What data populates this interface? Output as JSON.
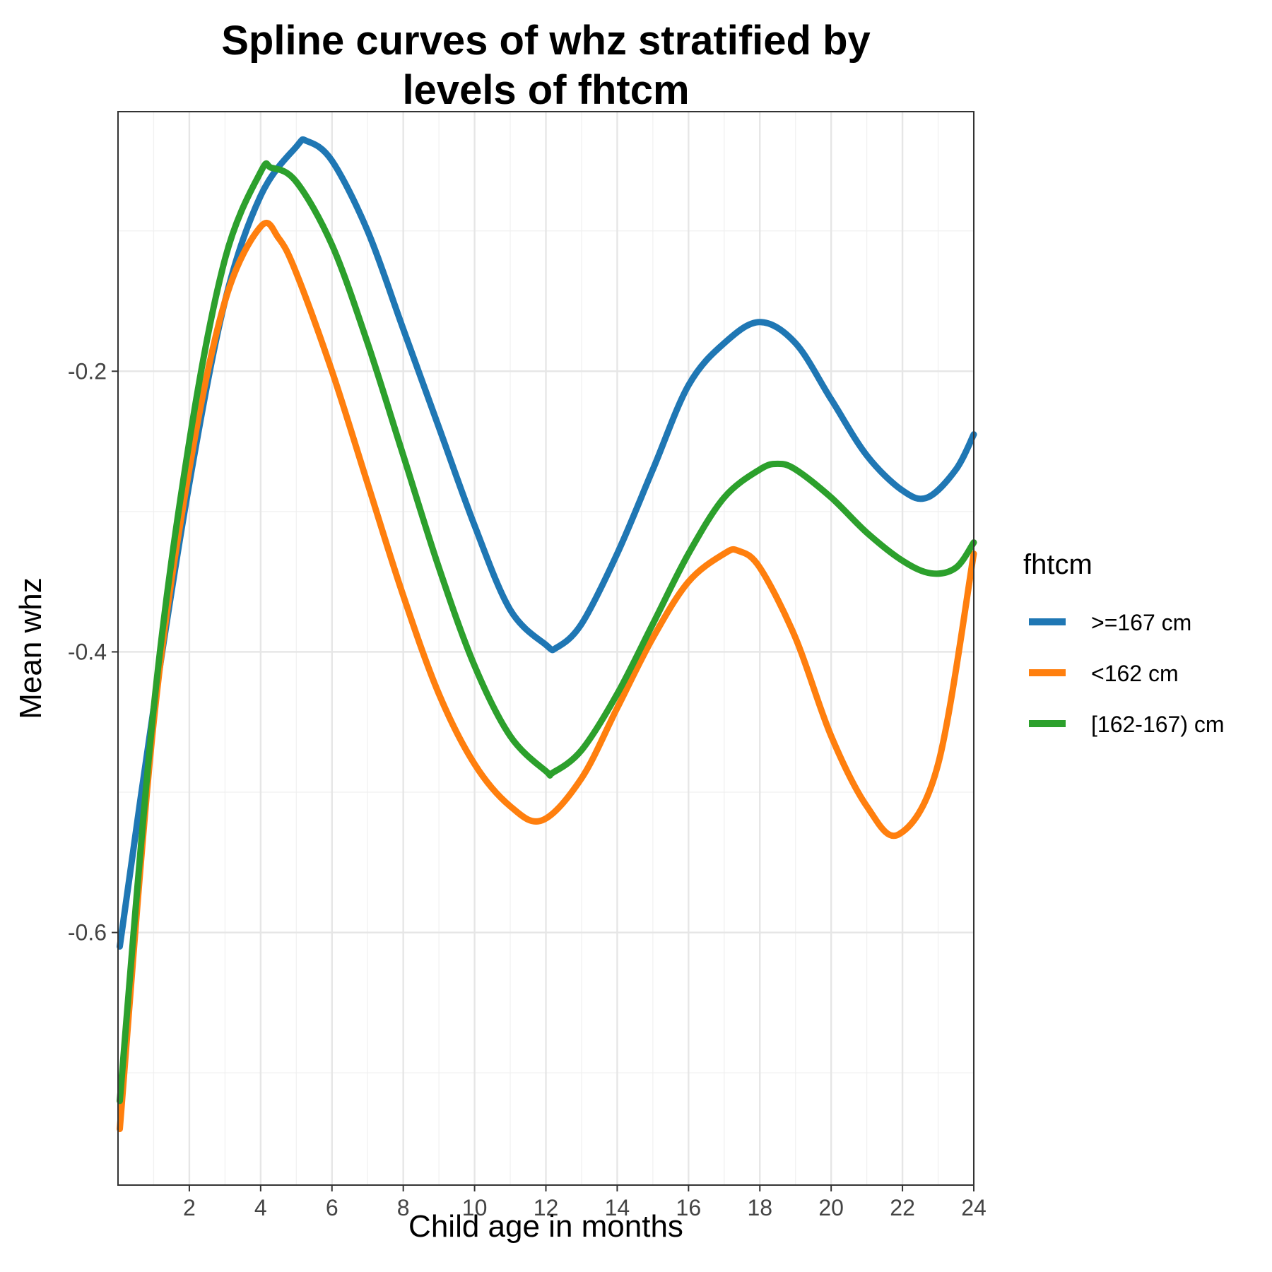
{
  "chart_data": {
    "type": "line",
    "title_lines": [
      "Spline curves of whz stratified by",
      "levels of fhtcm"
    ],
    "xlabel": "Child age in months",
    "ylabel": "Mean whz",
    "xlim": [
      0,
      24
    ],
    "ylim": [
      -0.78,
      -0.015
    ],
    "x_ticks": [
      2,
      4,
      6,
      8,
      10,
      12,
      14,
      16,
      18,
      20,
      22,
      24
    ],
    "y_ticks": [
      -0.6,
      -0.4,
      -0.2
    ],
    "y_tick_labels": [
      "-0.6",
      "-0.4",
      "-0.2"
    ],
    "grid": true,
    "legend": {
      "title": "fhtcm",
      "position": "right"
    },
    "series": [
      {
        "name": ">=167 cm",
        "color": "#1f77b4",
        "points": [
          [
            0.05,
            -0.61
          ],
          [
            1,
            -0.44
          ],
          [
            2,
            -0.28
          ],
          [
            3,
            -0.15
          ],
          [
            4,
            -0.075
          ],
          [
            5,
            -0.04
          ],
          [
            5.3,
            -0.036
          ],
          [
            6,
            -0.05
          ],
          [
            7,
            -0.1
          ],
          [
            8,
            -0.17
          ],
          [
            9,
            -0.24
          ],
          [
            10,
            -0.31
          ],
          [
            11,
            -0.37
          ],
          [
            12,
            -0.395
          ],
          [
            12.3,
            -0.397
          ],
          [
            13,
            -0.38
          ],
          [
            14,
            -0.33
          ],
          [
            15,
            -0.27
          ],
          [
            16,
            -0.21
          ],
          [
            17,
            -0.18
          ],
          [
            18,
            -0.165
          ],
          [
            19,
            -0.18
          ],
          [
            20,
            -0.22
          ],
          [
            21,
            -0.26
          ],
          [
            22,
            -0.285
          ],
          [
            22.7,
            -0.29
          ],
          [
            23.5,
            -0.27
          ],
          [
            24,
            -0.245
          ]
        ]
      },
      {
        "name": "<162 cm",
        "color": "#ff7f0e",
        "points": [
          [
            0.05,
            -0.74
          ],
          [
            1,
            -0.45
          ],
          [
            2,
            -0.27
          ],
          [
            3,
            -0.15
          ],
          [
            4,
            -0.097
          ],
          [
            4.5,
            -0.105
          ],
          [
            5,
            -0.13
          ],
          [
            6,
            -0.2
          ],
          [
            7,
            -0.28
          ],
          [
            8,
            -0.36
          ],
          [
            9,
            -0.43
          ],
          [
            10,
            -0.48
          ],
          [
            11,
            -0.51
          ],
          [
            11.9,
            -0.52
          ],
          [
            13,
            -0.49
          ],
          [
            14,
            -0.44
          ],
          [
            15,
            -0.39
          ],
          [
            16,
            -0.35
          ],
          [
            17,
            -0.33
          ],
          [
            17.4,
            -0.328
          ],
          [
            18,
            -0.34
          ],
          [
            19,
            -0.39
          ],
          [
            20,
            -0.46
          ],
          [
            21,
            -0.51
          ],
          [
            21.9,
            -0.53
          ],
          [
            23,
            -0.48
          ],
          [
            24,
            -0.33
          ]
        ]
      },
      {
        "name": "[162-167) cm",
        "color": "#2ca02c",
        "points": [
          [
            0.05,
            -0.72
          ],
          [
            1,
            -0.44
          ],
          [
            2,
            -0.25
          ],
          [
            3,
            -0.12
          ],
          [
            4,
            -0.058
          ],
          [
            4.3,
            -0.055
          ],
          [
            5,
            -0.065
          ],
          [
            6,
            -0.11
          ],
          [
            7,
            -0.18
          ],
          [
            8,
            -0.26
          ],
          [
            9,
            -0.34
          ],
          [
            10,
            -0.41
          ],
          [
            11,
            -0.46
          ],
          [
            12,
            -0.485
          ],
          [
            12.2,
            -0.486
          ],
          [
            13,
            -0.47
          ],
          [
            14,
            -0.43
          ],
          [
            15,
            -0.38
          ],
          [
            16,
            -0.33
          ],
          [
            17,
            -0.29
          ],
          [
            18,
            -0.27
          ],
          [
            18.5,
            -0.266
          ],
          [
            19,
            -0.27
          ],
          [
            20,
            -0.29
          ],
          [
            21,
            -0.315
          ],
          [
            22,
            -0.335
          ],
          [
            22.8,
            -0.344
          ],
          [
            23.5,
            -0.34
          ],
          [
            24,
            -0.322
          ]
        ]
      }
    ]
  }
}
